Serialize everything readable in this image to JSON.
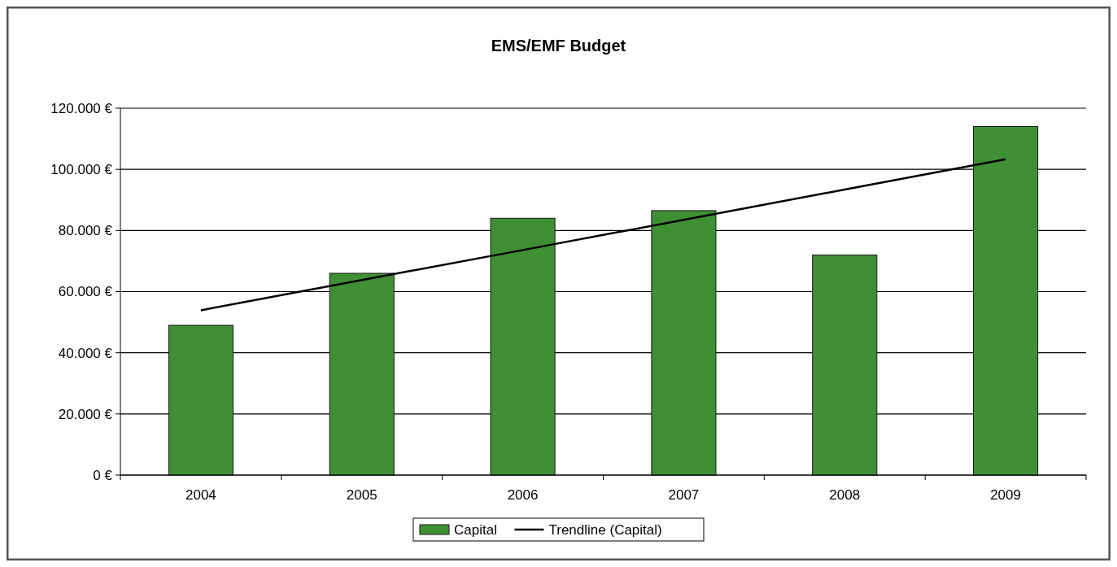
{
  "chart_data": {
    "type": "bar",
    "title": "EMS/EMF Budget",
    "categories": [
      "2004",
      "2005",
      "2006",
      "2007",
      "2008",
      "2009"
    ],
    "series": [
      {
        "name": "Capital",
        "color": "#3f8f35",
        "values": [
          49000,
          66000,
          84000,
          86500,
          72000,
          114000
        ]
      },
      {
        "name": "Trendline (Capital)",
        "type": "line",
        "color": "#000000",
        "values": [
          53900,
          63800,
          73600,
          83500,
          93400,
          103300
        ]
      }
    ],
    "ylim": [
      0,
      120000
    ],
    "yticks": [
      {
        "value": 0,
        "label": "0 €"
      },
      {
        "value": 20000,
        "label": "20.000 €"
      },
      {
        "value": 40000,
        "label": "40.000 €"
      },
      {
        "value": 60000,
        "label": "60.000 €"
      },
      {
        "value": 80000,
        "label": "80.000 €"
      },
      {
        "value": 100000,
        "label": "100.000 €"
      },
      {
        "value": 120000,
        "label": "120.000 €"
      }
    ],
    "grid": "y",
    "legend": "bottom",
    "marker": "none",
    "line_style": "solid"
  }
}
